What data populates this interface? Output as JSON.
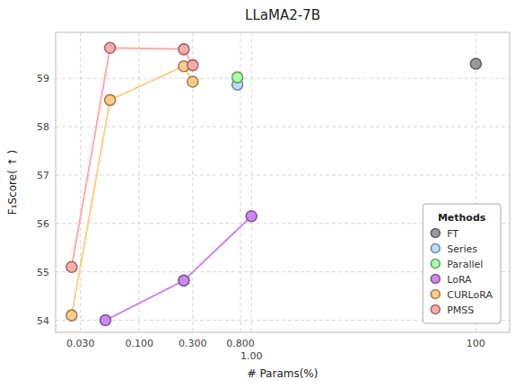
{
  "chart_data": {
    "type": "scatter",
    "title": "LLaMA2-7B",
    "x_label": "# Params(%)",
    "y_label": "F₁Score( ↑ )",
    "legend_title": "Methods",
    "log": "x",
    "grid": true,
    "legend": "lower right",
    "marker": "circle",
    "xlim": [
      0.018,
      200
    ],
    "ylim": [
      53.75,
      59.95
    ],
    "xticks": [
      {
        "value": 0.03,
        "label": "0.030"
      },
      {
        "value": 0.1,
        "label": "0.100"
      },
      {
        "value": 0.3,
        "label": "0.300"
      },
      {
        "value": 0.8,
        "label": "0.800"
      },
      {
        "value": 1.0,
        "label": "1.00"
      },
      100
    ],
    "yticks": [
      54,
      55,
      56,
      57,
      58,
      59
    ],
    "series": [
      {
        "name": "FT",
        "type": "scatter",
        "color": "#999999",
        "x": [
          100
        ],
        "values": [
          59.3
        ]
      },
      {
        "name": "Series",
        "type": "scatter",
        "color": "#bbddff",
        "x": [
          0.75
        ],
        "values": [
          58.87
        ]
      },
      {
        "name": "Parallel",
        "type": "scatter",
        "color": "#aaffaa",
        "x": [
          0.75
        ],
        "values": [
          59.02
        ]
      },
      {
        "name": "LoRA",
        "type": "line",
        "color": "#cc88ee",
        "x": [
          0.05,
          0.25,
          1.0
        ],
        "values": [
          54.0,
          54.82,
          56.15
        ]
      },
      {
        "name": "CURLoRA",
        "type": "line",
        "color": "#ffcc88",
        "x": [
          0.025,
          0.055,
          0.25,
          0.3
        ],
        "values": [
          54.1,
          58.55,
          59.25,
          58.93
        ]
      },
      {
        "name": "PMSS",
        "type": "line",
        "color": "#ffaaaa",
        "x": [
          0.025,
          0.055,
          0.25,
          0.3
        ],
        "values": [
          55.1,
          59.63,
          59.6,
          59.27
        ]
      }
    ]
  }
}
